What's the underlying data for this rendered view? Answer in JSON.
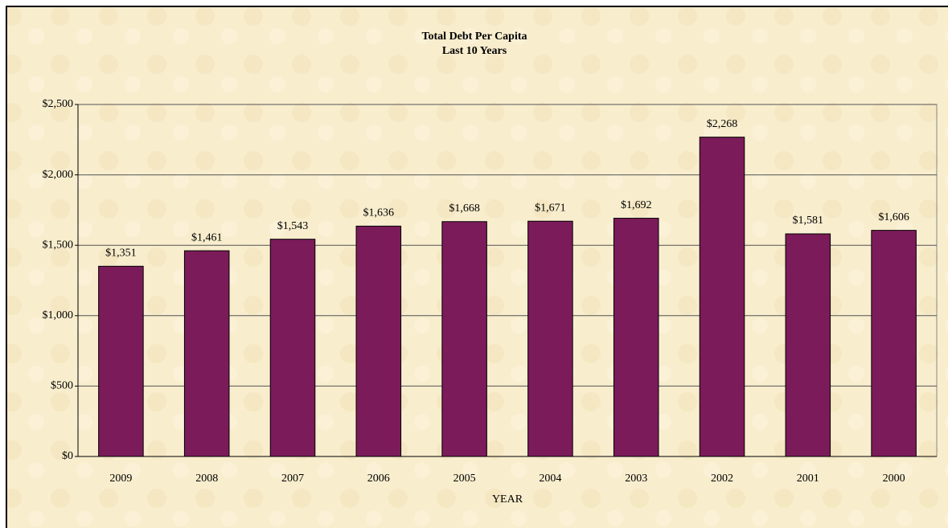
{
  "chart_data": {
    "type": "bar",
    "title": "Total Debt Per Capita",
    "subtitle": "Last 10 Years",
    "x_label": "YEAR",
    "categories": [
      "2009",
      "2008",
      "2007",
      "2006",
      "2005",
      "2004",
      "2003",
      "2002",
      "2001",
      "2000"
    ],
    "values": [
      1351,
      1461,
      1543,
      1636,
      1668,
      1671,
      1692,
      2268,
      1581,
      1606
    ],
    "value_labels": [
      "$1,351",
      "$1,461",
      "$1,543",
      "$1,636",
      "$1,668",
      "$1,671",
      "$1,692",
      "$2,268",
      "$1,581",
      "$1,606"
    ],
    "color": "#7b1b5a",
    "ylim": [
      0,
      2500
    ],
    "yticks": [
      {
        "value": 0,
        "label": "$0"
      },
      {
        "value": 500,
        "label": "$500"
      },
      {
        "value": 1000,
        "label": "$1,000"
      },
      {
        "value": 1500,
        "label": "$1,500"
      },
      {
        "value": 2000,
        "label": "$2,000"
      },
      {
        "value": 2500,
        "label": "$2,500"
      }
    ],
    "grid": true
  }
}
